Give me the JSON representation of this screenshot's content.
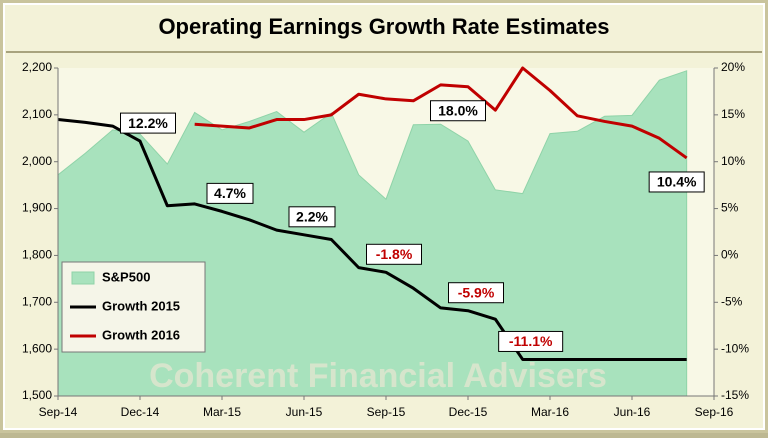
{
  "chart_data": {
    "type": "line",
    "title": "Operating Earnings Growth Rate Estimates",
    "watermark": "Coherent Financial Advisers",
    "categories": [
      "Sep-14",
      null,
      null,
      "Dec-14",
      null,
      null,
      "Mar-15",
      null,
      null,
      "Jun-15",
      null,
      null,
      "Sep-15",
      null,
      null,
      "Dec-15",
      null,
      null,
      "Mar-16",
      null,
      null,
      "Jun-16",
      null,
      null,
      "Sep-16"
    ],
    "series": [
      {
        "name": "S&P500",
        "kind": "area",
        "color": "#a8e2bd",
        "axis": "y",
        "values": [
          1972,
          2018,
          2068,
          2059,
          1995,
          2105,
          2068,
          2086,
          2107,
          2063,
          2104,
          1972,
          1920,
          2079,
          2080,
          2044,
          1940,
          1932,
          2060,
          2065,
          2097,
          2099,
          2174,
          2194,
          null
        ]
      },
      {
        "name": "Growth 2015",
        "kind": "line",
        "color": "#000000",
        "axis": "y2",
        "values": [
          14.5,
          14.2,
          13.8,
          12.2,
          5.3,
          5.5,
          4.7,
          3.8,
          2.7,
          2.2,
          1.7,
          -1.3,
          -1.8,
          -3.5,
          -5.6,
          -5.9,
          -6.8,
          -11.1,
          -11.1,
          -11.1,
          -11.1,
          -11.1,
          -11.1,
          -11.1,
          null
        ],
        "value_labels": [
          null,
          null,
          null,
          "12.2%",
          null,
          null,
          "4.7%",
          null,
          null,
          "2.2%",
          null,
          null,
          "-1.8%",
          null,
          null,
          "-5.9%",
          null,
          "-11.1%",
          null,
          null,
          null,
          null,
          null,
          null,
          null
        ]
      },
      {
        "name": "Growth 2016",
        "kind": "line",
        "color": "#c00000",
        "axis": "y2",
        "values": [
          null,
          null,
          null,
          null,
          null,
          14.0,
          13.8,
          13.6,
          14.5,
          14.5,
          15.0,
          17.2,
          16.7,
          16.5,
          18.2,
          18.0,
          15.5,
          20.0,
          17.6,
          14.9,
          14.3,
          13.8,
          12.5,
          10.4,
          null
        ],
        "value_labels": [
          null,
          null,
          null,
          null,
          null,
          null,
          null,
          null,
          null,
          null,
          null,
          null,
          null,
          null,
          null,
          "18.0%",
          null,
          null,
          null,
          null,
          null,
          null,
          null,
          "10.4%",
          null
        ]
      }
    ],
    "ylim": [
      1500,
      2200
    ],
    "yticks": [
      {
        "value": 1500,
        "label": "1,500"
      },
      {
        "value": 1600,
        "label": "1,600"
      },
      {
        "value": 1700,
        "label": "1,700"
      },
      {
        "value": 1800,
        "label": "1,800"
      },
      {
        "value": 1900,
        "label": "1,900"
      },
      {
        "value": 2000,
        "label": "2,000"
      },
      {
        "value": 2100,
        "label": "2,100"
      },
      {
        "value": 2200,
        "label": "2,200"
      }
    ],
    "y2lim": [
      -15,
      20
    ],
    "y2ticks": [
      {
        "value": -15,
        "label": "-15%"
      },
      {
        "value": -10,
        "label": "-10%"
      },
      {
        "value": -5,
        "label": "-5%"
      },
      {
        "value": 0,
        "label": "0%"
      },
      {
        "value": 5,
        "label": "5%"
      },
      {
        "value": 10,
        "label": "10%"
      },
      {
        "value": 15,
        "label": "15%"
      },
      {
        "value": 20,
        "label": "20%"
      }
    ],
    "legend": "lower left",
    "grid": false
  }
}
